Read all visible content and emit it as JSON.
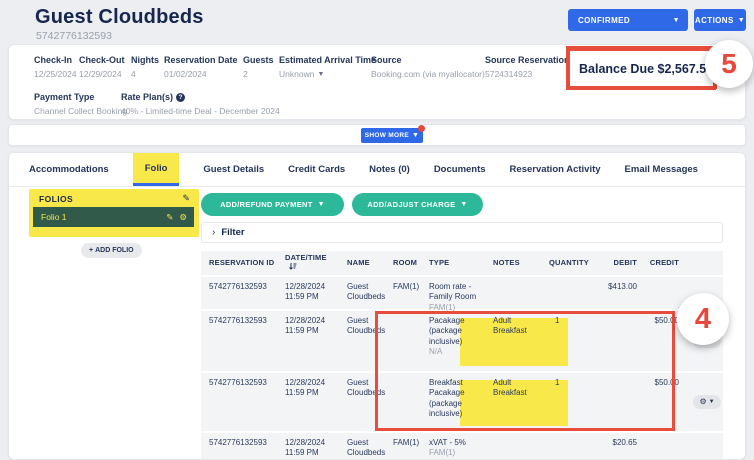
{
  "page": {
    "title": "Guest Cloudbeds",
    "subtitle": "5742776132593"
  },
  "header": {
    "status_button": "CONFIRMED",
    "actions_button": "ACTIONS"
  },
  "summary": {
    "fields": [
      {
        "label": "Check-In",
        "value": "12/25/2024",
        "dropdown": false,
        "help": false
      },
      {
        "label": "Check-Out",
        "value": "12/29/2024",
        "dropdown": false,
        "help": false
      },
      {
        "label": "Nights",
        "value": "4",
        "dropdown": false,
        "help": false
      },
      {
        "label": "Reservation Date",
        "value": "01/02/2024",
        "dropdown": false,
        "help": false
      },
      {
        "label": "Guests",
        "value": "2",
        "dropdown": false,
        "help": false
      },
      {
        "label": "Estimated Arrival Time",
        "value": "Unknown",
        "dropdown": true,
        "help": false
      },
      {
        "label": "Source",
        "value": "Booking.com (via myallocator)",
        "dropdown": false,
        "help": false
      },
      {
        "label": "Source Reservation ID",
        "value": "5724314923",
        "dropdown": false,
        "help": false
      }
    ],
    "fields_row2": [
      {
        "label": "Payment Type",
        "value": "Channel Collect Booking",
        "dropdown": false,
        "help": false
      },
      {
        "label": "Rate Plan(s)",
        "value": "40% - Limited-time Deal - December 2024",
        "dropdown": false,
        "help": true
      }
    ],
    "balance_due": "Balance Due $2,567.58",
    "show_more": "SHOW MORE"
  },
  "tabs": [
    {
      "label": "Accommodations",
      "active": false
    },
    {
      "label": "Folio",
      "active": true
    },
    {
      "label": "Guest Details",
      "active": false
    },
    {
      "label": "Credit Cards",
      "active": false
    },
    {
      "label": "Notes (0)",
      "active": false
    },
    {
      "label": "Documents",
      "active": false
    },
    {
      "label": "Reservation Activity",
      "active": false
    },
    {
      "label": "Email Messages",
      "active": false
    }
  ],
  "folios": {
    "panel_title": "FOLIOS",
    "selected_folio": "Folio 1",
    "add_button": "ADD FOLIO"
  },
  "folio_toolbar": {
    "add_refund_button": "ADD/REFUND PAYMENT",
    "add_adjust_button": "ADD/ADJUST CHARGE",
    "filter_label": "Filter"
  },
  "folio_table": {
    "columns": [
      "RESERVATION ID",
      "DATE/TIME",
      "NAME",
      "ROOM",
      "TYPE",
      "NOTES",
      "QUANTITY",
      "DEBIT",
      "CREDIT"
    ],
    "rows": [
      {
        "reservation_id": "5742776132593",
        "date": "12/28/2024",
        "time": "11:59 PM",
        "name": "Guest Cloudbeds",
        "room": "FAM(1)",
        "type": "Room rate - Family Room",
        "type_sub": "FAM(1)",
        "notes": "",
        "quantity": "",
        "debit": "$413.00",
        "credit": "",
        "highlighted": false,
        "has_gear": false
      },
      {
        "reservation_id": "5742776132593",
        "date": "12/28/2024",
        "time": "11:59 PM",
        "name": "Guest Cloudbeds",
        "room": "",
        "type": "Pacakage (package inclusive)",
        "type_sub": "N/A",
        "notes": "Adult Breakfast",
        "quantity": "1",
        "debit": "",
        "credit": "$50.00",
        "highlighted": true,
        "has_gear": true
      },
      {
        "reservation_id": "5742776132593",
        "date": "12/28/2024",
        "time": "11:59 PM",
        "name": "Guest Cloudbeds",
        "room": "",
        "type": "Breakfast Pacakage (package inclusive)",
        "type_sub": "",
        "notes": "Adult Breakfast",
        "quantity": "1",
        "debit": "",
        "credit": "$50.00",
        "highlighted": true,
        "has_gear": true
      },
      {
        "reservation_id": "5742776132593",
        "date": "12/28/2024",
        "time": "11:59 PM",
        "name": "Guest Cloudbeds",
        "room": "FAM(1)",
        "type": "xVAT - 5%",
        "type_sub": "FAM(1)",
        "notes": "",
        "quantity": "",
        "debit": "$20.65",
        "credit": "",
        "highlighted": false,
        "has_gear": false
      }
    ]
  },
  "annotations": {
    "callout_4": "4",
    "callout_5": "5"
  },
  "colors": {
    "accent_blue": "#3069e8",
    "teal": "#2eb89a",
    "highlight_yellow": "#f8e84a",
    "folio_green": "#315a4a",
    "annotation_red": "#e84d3c",
    "navy_text": "#17264d"
  }
}
